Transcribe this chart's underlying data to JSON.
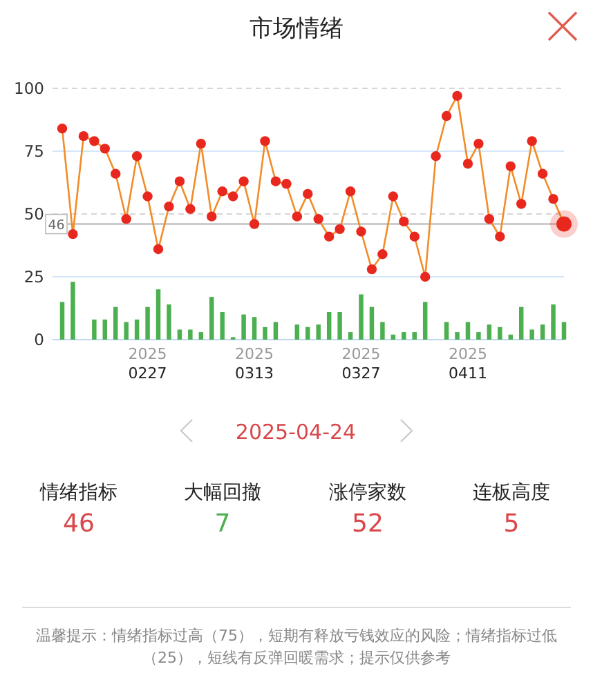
{
  "chart_data": {
    "type": "line",
    "title": "市场情绪",
    "categories": [
      null,
      null,
      null,
      null,
      null,
      null,
      null,
      null,
      "2025\n0227",
      null,
      null,
      null,
      null,
      null,
      null,
      null,
      null,
      null,
      "2025\n0313",
      null,
      null,
      null,
      null,
      null,
      null,
      null,
      null,
      null,
      "2025\n0327",
      null,
      null,
      null,
      null,
      null,
      null,
      null,
      null,
      null,
      "2025\n0411",
      null,
      null,
      null,
      null,
      null,
      null,
      null,
      null,
      null
    ],
    "series": [
      {
        "type": "bar",
        "color": "#4caf50",
        "values": [
          15,
          23,
          0,
          8,
          8,
          13,
          7,
          8,
          13,
          20,
          14,
          4,
          4,
          3,
          17,
          11,
          1,
          10,
          9,
          5,
          7,
          0,
          6,
          5,
          6,
          11,
          11,
          3,
          18,
          13,
          7,
          2,
          3,
          3,
          15,
          0,
          7,
          3,
          7,
          3,
          6,
          5,
          2,
          13,
          4,
          6,
          14,
          7
        ]
      },
      {
        "type": "line",
        "color": "#f28c28",
        "colors": [
          "#e8281e",
          "#e8281e",
          "#e8281e",
          "#e8281e",
          "#e8281e",
          "#e8281e",
          "#e8281e",
          "#e8281e",
          "#e8281e",
          "#e8281e",
          "#e8281e",
          "#e8281e",
          "#e8281e",
          "#e8281e",
          "#e8281e",
          "#e8281e",
          "#e8281e",
          "#e8281e",
          "#e8281e",
          "#e8281e",
          "#e8281e",
          "#e8281e",
          "#e8281e",
          "#e8281e",
          "#e8281e",
          "#e8281e",
          "#e8281e",
          "#e8281e",
          "#e8281e",
          "#e8281e",
          "#e8281e",
          "#e8281e",
          "#e8281e",
          "#e8281e",
          "#e8281e",
          "#e8281e",
          "#e8281e",
          "#e8281e",
          "#e8281e",
          "#e8281e",
          "#e8281e",
          "#e8281e",
          "#e8281e",
          "#e8281e",
          "#e8281e",
          "#e8281e",
          "#e8281e",
          "#e8281e"
        ],
        "values": [
          84,
          42,
          81,
          79,
          76,
          66,
          48,
          73,
          57,
          36,
          53,
          63,
          52,
          78,
          49,
          59,
          57,
          63,
          46,
          79,
          63,
          62,
          49,
          58,
          48,
          41,
          44,
          59,
          43,
          28,
          34,
          57,
          47,
          41,
          25,
          73,
          89,
          97,
          70,
          78,
          48,
          41,
          69,
          54,
          79,
          66,
          56,
          46
        ]
      }
    ],
    "ylim": [
      0,
      100
    ],
    "yticks": [
      0,
      25,
      50,
      75,
      100
    ],
    "grid": "y",
    "marker": "circle",
    "ref_lines": [
      {
        "axis": "y",
        "value": 100,
        "color": "#d6d6d6",
        "line_style": "dashed"
      },
      {
        "axis": "y",
        "value": 50,
        "color": "#d6d6d6",
        "line_style": "dashed"
      },
      {
        "axis": "y",
        "value": 46,
        "label": "46",
        "color": "#cccccc"
      }
    ],
    "annotations": [
      "2025-04-24",
      "情绪指标",
      "46",
      "大幅回撤",
      "7",
      "涨停家数",
      "52",
      "连板高度",
      "5",
      "温馨提示：情绪指标过高（75），短期有释放亏钱效应的风险；情绪指标过低（25），短线有反弹回暖需求；提示仅供参考"
    ]
  }
}
